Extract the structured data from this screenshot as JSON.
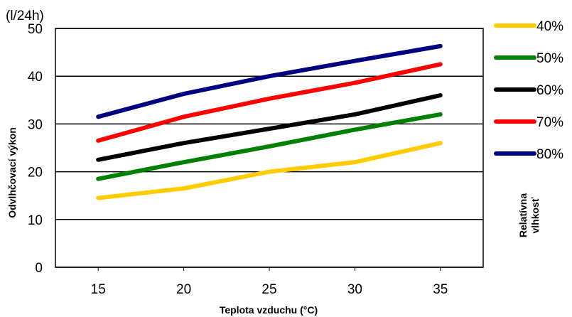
{
  "chart_data": {
    "type": "line",
    "x": [
      15,
      20,
      25,
      30,
      35
    ],
    "xlabel": "Teplota vzduchu (°C)",
    "ylabel": "Odvlhčovací výkon",
    "yunit": "(l/24h)",
    "ylim": [
      0,
      50
    ],
    "yticks": [
      0,
      10,
      20,
      30,
      40,
      50
    ],
    "xticks": [
      15,
      20,
      25,
      30,
      35
    ],
    "grid": true,
    "legend_title_line1": "Relatívna",
    "legend_title_line2": "vlhkosť",
    "legend_position": "right",
    "series": [
      {
        "name": "40%",
        "color": "#FFCC00",
        "values": [
          14.5,
          16.5,
          20,
          22,
          26
        ]
      },
      {
        "name": "50%",
        "color": "#008000",
        "values": [
          18.5,
          22,
          25.3,
          28.8,
          32
        ]
      },
      {
        "name": "60%",
        "color": "#000000",
        "values": [
          22.5,
          26,
          29,
          32,
          36
        ]
      },
      {
        "name": "70%",
        "color": "#FF0000",
        "values": [
          26.5,
          31.5,
          35.3,
          38.6,
          42.5
        ]
      },
      {
        "name": "80%",
        "color": "#000080",
        "values": [
          31.5,
          36.3,
          40,
          43.2,
          46.3
        ]
      }
    ]
  }
}
